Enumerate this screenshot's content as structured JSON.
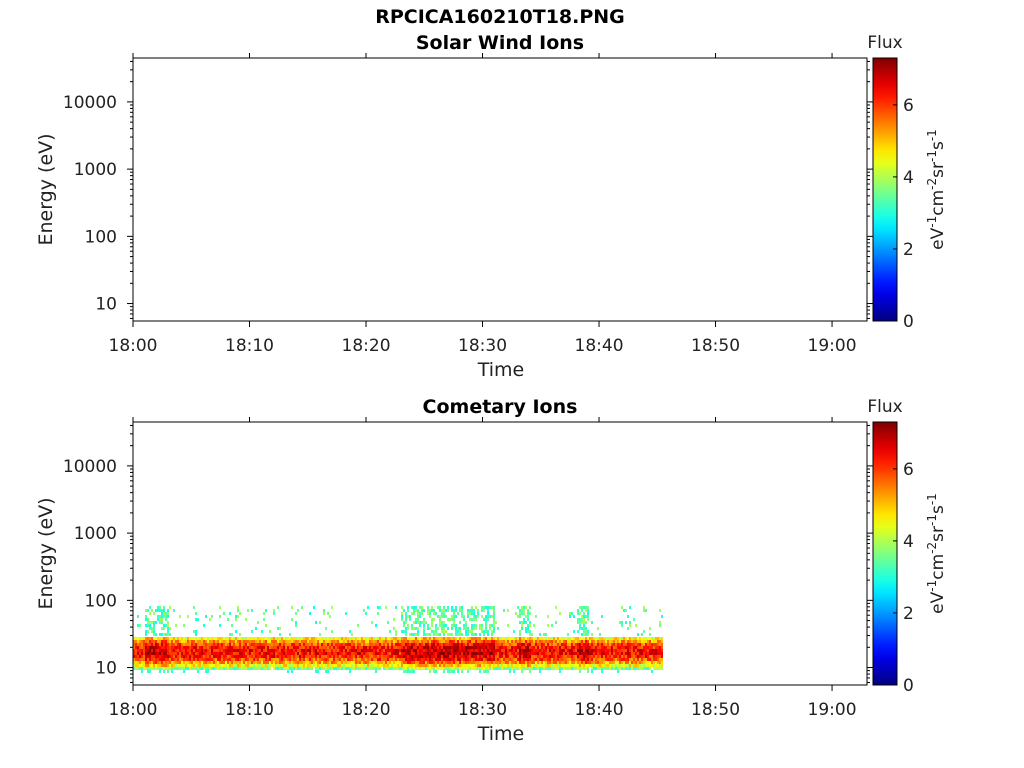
{
  "figure": {
    "title": "RPCICA160210T18.PNG"
  },
  "chart_data": [
    {
      "type": "heatmap",
      "title": "Solar Wind Ions",
      "xlabel": "Time",
      "ylabel": "Energy (eV)",
      "x_ticks": [
        "18:00",
        "18:10",
        "18:20",
        "18:30",
        "18:40",
        "18:50",
        "19:00"
      ],
      "xlim": [
        "18:00",
        "19:03"
      ],
      "y_scale": "log",
      "y_ticks": [
        10,
        100,
        1000,
        10000
      ],
      "y_tick_labels": [
        "10",
        "100",
        "1000",
        "10000"
      ],
      "ylim": [
        5.5,
        45000
      ],
      "colorbar": {
        "title": "Flux",
        "label": "eV-1cm-2sr-1s-1",
        "range": [
          0,
          7.3
        ],
        "ticks": [
          0,
          2,
          4,
          6
        ],
        "tick_labels": [
          "0",
          "2",
          "4",
          "6"
        ],
        "colormap": "jet"
      },
      "data": {
        "present": false,
        "bands": []
      }
    },
    {
      "type": "heatmap",
      "title": "Cometary Ions",
      "xlabel": "Time",
      "ylabel": "Energy (eV)",
      "x_ticks": [
        "18:00",
        "18:10",
        "18:20",
        "18:30",
        "18:40",
        "18:50",
        "19:00"
      ],
      "xlim": [
        "18:00",
        "19:03"
      ],
      "y_scale": "log",
      "y_ticks": [
        10,
        100,
        1000,
        10000
      ],
      "y_tick_labels": [
        "10",
        "100",
        "1000",
        "10000"
      ],
      "ylim": [
        5.5,
        45000
      ],
      "colorbar": {
        "title": "Flux",
        "label": "eV-1cm-2sr-1s-1",
        "range": [
          0,
          7.3
        ],
        "ticks": [
          0,
          2,
          4,
          6
        ],
        "tick_labels": [
          "0",
          "2",
          "4",
          "6"
        ],
        "colormap": "jet"
      },
      "data": {
        "present": true,
        "time_range": [
          "18:00",
          "18:45:30"
        ],
        "peak_band_eV": [
          13,
          25
        ],
        "core_band_eV": [
          9,
          28
        ],
        "sparse_high_band_eV": [
          30,
          80
        ],
        "peak_flux": 7.0,
        "enhancement_intervals": [
          [
            "18:01",
            "18:03"
          ],
          [
            "18:23",
            "18:31"
          ],
          [
            "18:33",
            "18:34"
          ],
          [
            "18:38",
            "18:39"
          ]
        ]
      }
    }
  ]
}
